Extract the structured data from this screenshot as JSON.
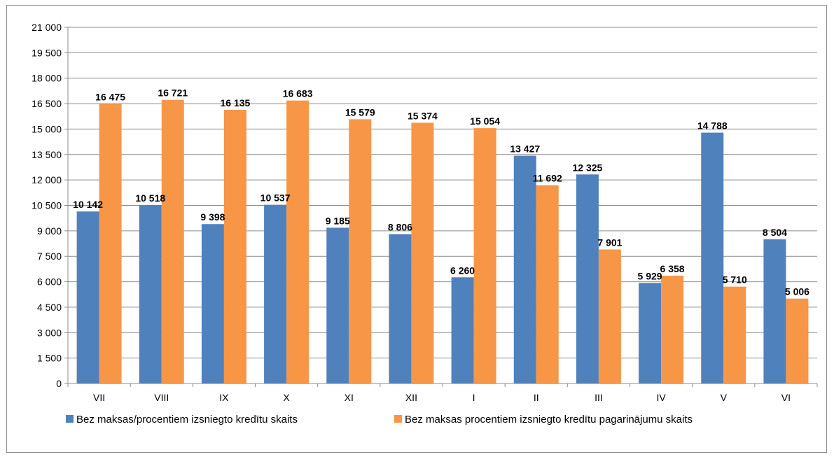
{
  "chart_data": {
    "type": "bar",
    "categories": [
      "VII",
      "VIII",
      "IX",
      "X",
      "XI",
      "XII",
      "I",
      "II",
      "III",
      "IV",
      "V",
      "VI"
    ],
    "series": [
      {
        "name": "Bez maksas/procentiem izsniegto kredītu skaits",
        "color": "#4f81bd",
        "values": [
          10142,
          10518,
          9398,
          10537,
          9185,
          8806,
          6260,
          13427,
          12325,
          5929,
          14788,
          8504
        ],
        "labels": [
          "10 142",
          "10 518",
          "9 398",
          "10 537",
          "9 185",
          "8 806",
          "6 260",
          "13 427",
          "12 325",
          "5 929",
          "14 788",
          "8 504"
        ]
      },
      {
        "name": "Bez maksas procentiem izsniegto kredītu pagarinājumu skaits",
        "color": "#f79646",
        "values": [
          16475,
          16721,
          16135,
          16683,
          15579,
          15374,
          15054,
          11692,
          7901,
          6358,
          5710,
          5006
        ],
        "labels": [
          "16 475",
          "16 721",
          "16 135",
          "16 683",
          "15 579",
          "15 374",
          "15 054",
          "11 692",
          "7 901",
          "6 358",
          "5 710",
          "5 006"
        ]
      }
    ],
    "ylim": [
      0,
      21000
    ],
    "yticks": [
      0,
      1500,
      3000,
      4500,
      6000,
      7500,
      9000,
      10500,
      12000,
      13500,
      15000,
      16500,
      18000,
      19500,
      21000
    ],
    "ytick_labels": [
      "0",
      "1 500",
      "3 000",
      "4 500",
      "6 000",
      "7 500",
      "9 000",
      "10 500",
      "12 000",
      "13 500",
      "15 000",
      "16 500",
      "18 000",
      "19 500",
      "21 000"
    ],
    "grid": true,
    "legend": "bottom"
  }
}
